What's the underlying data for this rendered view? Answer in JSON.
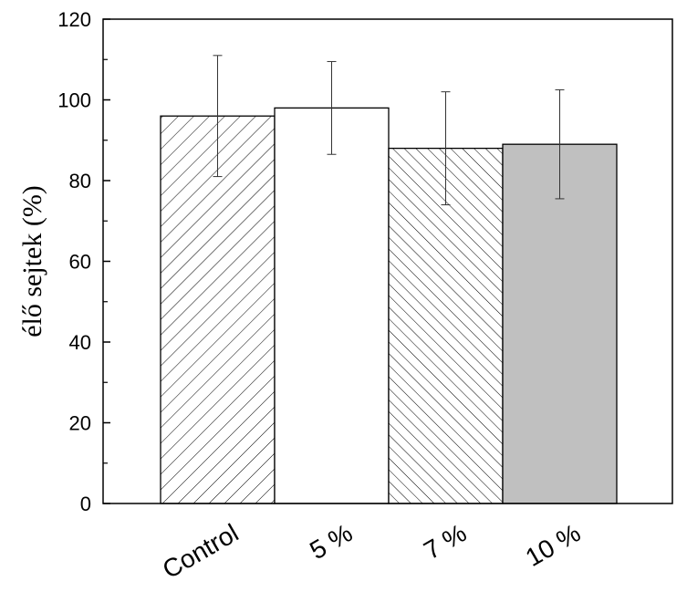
{
  "chart_data": {
    "type": "bar",
    "title": "",
    "xlabel": "",
    "ylabel": "élő sejtek (%)",
    "ylim": [
      0,
      120
    ],
    "yticks": [
      0,
      20,
      40,
      60,
      80,
      100,
      120
    ],
    "categories": [
      "Control",
      "5 %",
      "7 %",
      "10 %"
    ],
    "values": [
      96,
      98,
      88,
      89
    ],
    "errors": [
      15,
      11.5,
      14,
      13.5
    ],
    "fills": [
      {
        "pattern": "hatch-forward",
        "color": "#ffffff"
      },
      {
        "pattern": "none",
        "color": "#ffffff"
      },
      {
        "pattern": "hatch-back",
        "color": "#ffffff"
      },
      {
        "pattern": "none",
        "color": "#c0c0c0"
      }
    ],
    "grid": false,
    "legend": "none"
  }
}
